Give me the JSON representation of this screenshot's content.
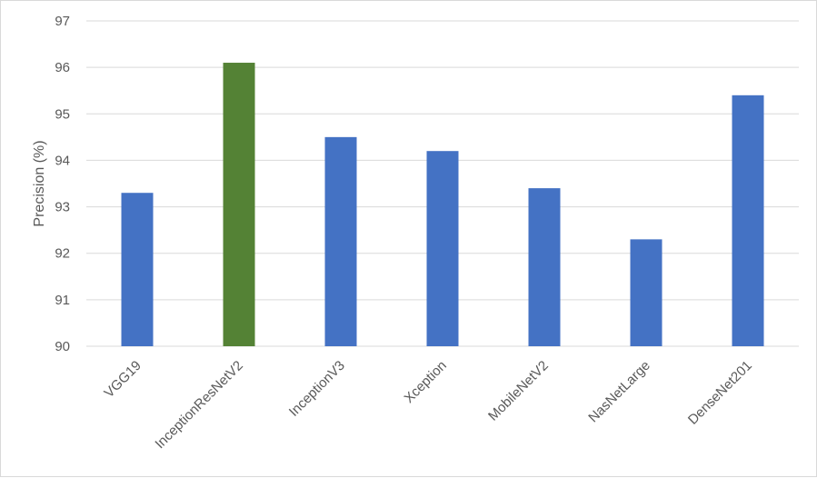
{
  "chart_data": {
    "type": "bar",
    "title": "",
    "xlabel": "",
    "ylabel": "Precision (%)",
    "ylim": [
      90,
      97
    ],
    "yticks": [
      90,
      91,
      92,
      93,
      94,
      95,
      96,
      97
    ],
    "grid": true,
    "legend": "none",
    "categories": [
      "VGG19",
      "InceptionResNetV2",
      "InceptionV3",
      "Xception",
      "MobileNetV2",
      "NasNetLarge",
      "DenseNet201"
    ],
    "values": [
      93.3,
      96.1,
      94.5,
      94.2,
      93.4,
      92.3,
      95.4
    ],
    "colors": [
      "#4472C4",
      "#548235",
      "#4472C4",
      "#4472C4",
      "#4472C4",
      "#4472C4",
      "#4472C4"
    ]
  }
}
